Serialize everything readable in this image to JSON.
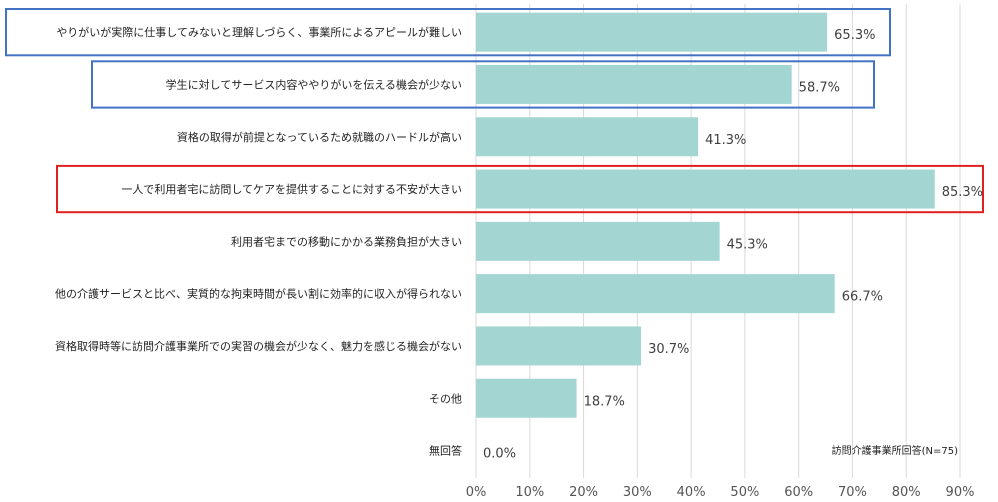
{
  "chart_data": {
    "type": "bar",
    "orientation": "horizontal",
    "categories": [
      "やりがいが実際に仕事してみないと理解しづらく、事業所によるアピールが難しい",
      "学生に対してサービス内容ややりがいを伝える機会が少ない",
      "資格の取得が前提となっているため就職のハードルが高い",
      "一人で利用者宅に訪問してケアを提供することに対する不安が大きい",
      "利用者宅までの移動にかかる業務負担が大きい",
      "他の介護サービスと比べ、実質的な拘束時間が長い割に効率的に収入が得られない",
      "資格取得時等に訪問介護事業所での実習の機会が少なく、魅力を感じる機会がない",
      "その他",
      "無回答"
    ],
    "values": [
      65.3,
      58.7,
      41.3,
      85.3,
      45.3,
      66.7,
      30.7,
      18.7,
      0.0
    ],
    "value_labels": [
      "65.3%",
      "58.7%",
      "41.3%",
      "85.3%",
      "45.3%",
      "66.7%",
      "30.7%",
      "18.7%",
      "0.0%"
    ],
    "x_ticks": [
      "0%",
      "10%",
      "20%",
      "30%",
      "40%",
      "50%",
      "60%",
      "70%",
      "80%",
      "90%"
    ],
    "xlim": [
      0,
      90
    ],
    "grid": "vertical",
    "note": "訪問介護事業所回答(N=75)",
    "highlights": [
      {
        "rows": [
          0,
          1
        ],
        "color": "#4472c4"
      },
      {
        "rows": [
          3
        ],
        "color": "#e0201f"
      }
    ],
    "colors": {
      "bar": "#a3d5d3",
      "grid": "#d9d9d9"
    }
  }
}
